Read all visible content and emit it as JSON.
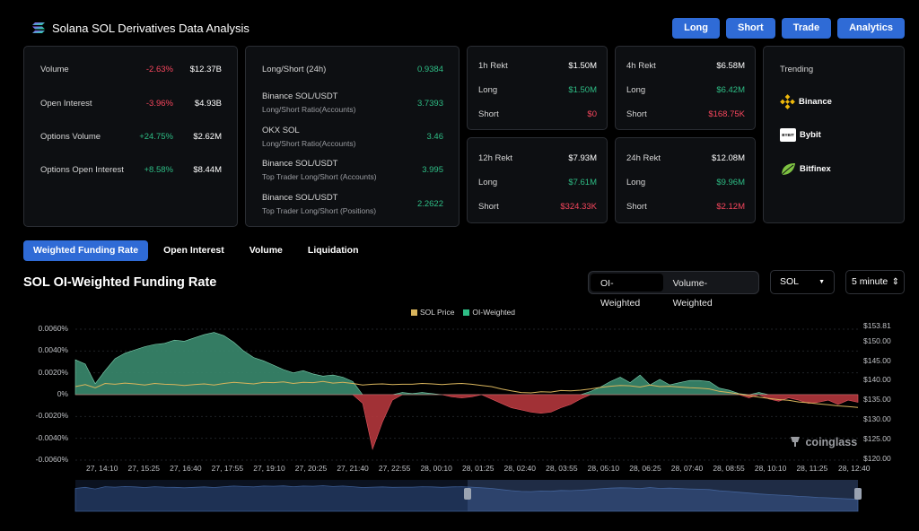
{
  "header": {
    "title": "Solana SOL Derivatives Data Analysis",
    "nav": [
      "Long",
      "Short",
      "Trade",
      "Analytics"
    ]
  },
  "stats": [
    {
      "label": "Volume",
      "change": "-2.63%",
      "value": "$12.37B"
    },
    {
      "label": "Open Interest",
      "change": "-3.96%",
      "value": "$4.93B"
    },
    {
      "label": "Options Volume",
      "change": "+24.75%",
      "value": "$2.62M"
    },
    {
      "label": "Options Open Interest",
      "change": "+8.58%",
      "value": "$8.44M"
    }
  ],
  "ratios": [
    {
      "label": "Long/Short (24h)",
      "sub": "",
      "value": "0.9384"
    },
    {
      "label": "Binance SOL/USDT",
      "sub": "Long/Short Ratio(Accounts)",
      "value": "3.7393"
    },
    {
      "label": "OKX SOL",
      "sub": "Long/Short Ratio(Accounts)",
      "value": "3.46"
    },
    {
      "label": "Binance SOL/USDT",
      "sub": "Top Trader Long/Short (Accounts)",
      "value": "3.995"
    },
    {
      "label": "Binance SOL/USDT",
      "sub": "Top Trader Long/Short (Positions)",
      "value": "2.2622"
    }
  ],
  "rekt": [
    {
      "title": "1h Rekt",
      "total": "$1.50M",
      "long_label": "Long",
      "long": "$1.50M",
      "short_label": "Short",
      "short": "$0"
    },
    {
      "title": "4h Rekt",
      "total": "$6.58M",
      "long_label": "Long",
      "long": "$6.42M",
      "short_label": "Short",
      "short": "$168.75K"
    },
    {
      "title": "12h Rekt",
      "total": "$7.93M",
      "long_label": "Long",
      "long": "$7.61M",
      "short_label": "Short",
      "short": "$324.33K"
    },
    {
      "title": "24h Rekt",
      "total": "$12.08M",
      "long_label": "Long",
      "long": "$9.96M",
      "short_label": "Short",
      "short": "$2.12M"
    }
  ],
  "trending": {
    "title": "Trending",
    "items": [
      "Binance",
      "Bybit",
      "Bitfinex"
    ]
  },
  "tabs": [
    "Weighted Funding Rate",
    "Open Interest",
    "Volume",
    "Liquidation"
  ],
  "section_title": "SOL OI-Weighted Funding Rate",
  "toggle": [
    "OI-Weighted",
    "Volume-Weighted"
  ],
  "coin_select": "SOL",
  "interval_select": "5 minute",
  "watermark": "coinglass",
  "colors": {
    "accent": "#2f6bd6",
    "positive": "#2ebd85",
    "negative": "#f6465d",
    "area_pos": "#3a8a6e",
    "area_neg": "#b3363c",
    "price_line": "#d8b45c"
  },
  "chart_data": {
    "type": "area",
    "legend": [
      "SOL Price",
      "OI-Weighted"
    ],
    "y_left_ticks": [
      "0.0060%",
      "0.0040%",
      "0.0020%",
      "0%",
      "-0.0020%",
      "-0.0040%",
      "-0.0060%"
    ],
    "y_right_ticks": [
      "$153.81",
      "$150.00",
      "$145.00",
      "$140.00",
      "$135.00",
      "$130.00",
      "$125.00",
      "$120.00"
    ],
    "x_ticks": [
      "27, 14:10",
      "27, 15:25",
      "27, 16:40",
      "27, 17:55",
      "27, 19:10",
      "27, 20:25",
      "27, 21:40",
      "27, 22:55",
      "28, 00:10",
      "28, 01:25",
      "28, 02:40",
      "28, 03:55",
      "28, 05:10",
      "28, 06:25",
      "28, 07:40",
      "28, 08:55",
      "28, 10:10",
      "28, 11:25",
      "28, 12:40"
    ],
    "ylim_left": [
      -0.006,
      0.006
    ],
    "ylim_right": [
      120,
      153.81
    ],
    "series": [
      {
        "name": "OI-Weighted",
        "unit": "%",
        "values": [
          0.0032,
          0.0028,
          0.001,
          0.0022,
          0.0033,
          0.0038,
          0.0041,
          0.0044,
          0.0046,
          0.0047,
          0.005,
          0.0049,
          0.0052,
          0.0055,
          0.0057,
          0.0054,
          0.0048,
          0.004,
          0.0034,
          0.0031,
          0.0027,
          0.0023,
          0.002,
          0.0022,
          0.0019,
          0.0017,
          0.0018,
          0.0016,
          0.0012,
          -0.0008,
          -0.005,
          -0.0025,
          -0.0005,
          0.0002,
          0.0001,
          0.0002,
          0.0001,
          0.0,
          -0.0002,
          -0.0003,
          -0.0002,
          0.0,
          -0.0004,
          -0.0008,
          -0.0012,
          -0.0014,
          -0.0016,
          -0.0017,
          -0.0016,
          -0.0012,
          -0.0009,
          -0.0004,
          0.0003,
          0.0007,
          0.0012,
          0.0016,
          0.0011,
          0.0018,
          0.0009,
          0.0014,
          0.0009,
          0.0011,
          0.0013,
          0.0013,
          0.0012,
          0.0006,
          0.0004,
          0.0001,
          -0.0003,
          0.0002,
          -0.0004,
          -0.0006,
          -0.0003,
          -0.0005,
          -0.0008,
          -0.0007,
          -0.0005,
          -0.0009,
          -0.0005,
          -0.0007
        ]
      },
      {
        "name": "SOL Price",
        "unit": "$",
        "values": [
          138.5,
          139.0,
          138.2,
          139.3,
          139.1,
          139.4,
          139.2,
          138.9,
          139.3,
          139.1,
          139.0,
          138.8,
          139.0,
          139.2,
          138.9,
          139.3,
          139.6,
          139.4,
          139.2,
          139.6,
          139.5,
          139.7,
          139.3,
          139.6,
          139.5,
          139.8,
          139.4,
          139.6,
          139.3,
          138.9,
          139.1,
          139.2,
          139.0,
          139.1,
          139.1,
          139.3,
          139.2,
          139.0,
          139.2,
          139.3,
          139.1,
          138.8,
          138.5,
          137.9,
          137.4,
          137.0,
          136.9,
          137.2,
          137.1,
          137.5,
          137.4,
          137.6,
          137.9,
          138.3,
          138.6,
          138.8,
          138.7,
          138.4,
          138.9,
          138.5,
          138.6,
          138.4,
          138.2,
          138.1,
          137.9,
          137.3,
          137.0,
          136.6,
          136.2,
          135.8,
          135.5,
          135.2,
          135.0,
          134.6,
          134.4,
          134.1,
          133.9,
          133.6,
          133.4,
          133.2
        ]
      }
    ],
    "navigator": {
      "range_start": "28, 01:25",
      "range_end": "28, 12:40"
    }
  }
}
